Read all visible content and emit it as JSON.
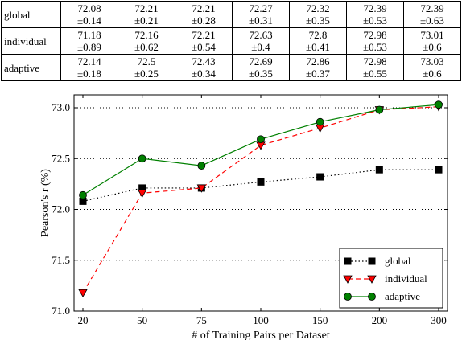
{
  "results_table": {
    "rows": [
      {
        "label": "global",
        "cells": [
          {
            "mean": "72.08",
            "std": "±0.14"
          },
          {
            "mean": "72.21",
            "std": "±0.21"
          },
          {
            "mean": "72.21",
            "std": "±0.28"
          },
          {
            "mean": "72.27",
            "std": "±0.31"
          },
          {
            "mean": "72.32",
            "std": "±0.35"
          },
          {
            "mean": "72.39",
            "std": "±0.53"
          },
          {
            "mean": "72.39",
            "std": "±0.63"
          }
        ]
      },
      {
        "label": "individual",
        "cells": [
          {
            "mean": "71.18",
            "std": "±0.89"
          },
          {
            "mean": "72.16",
            "std": "±0.62"
          },
          {
            "mean": "72.21",
            "std": "±0.54"
          },
          {
            "mean": "72.63",
            "std": "±0.4"
          },
          {
            "mean": "72.8",
            "std": "±0.41"
          },
          {
            "mean": "72.98",
            "std": "±0.53"
          },
          {
            "mean": "73.01",
            "std": "±0.6"
          }
        ]
      },
      {
        "label": "adaptive",
        "cells": [
          {
            "mean": "72.14",
            "std": "±0.18"
          },
          {
            "mean": "72.5",
            "std": "±0.25"
          },
          {
            "mean": "72.43",
            "std": "±0.34"
          },
          {
            "mean": "72.69",
            "std": "±0.35"
          },
          {
            "mean": "72.86",
            "std": "±0.37"
          },
          {
            "mean": "72.98",
            "std": "±0.55"
          },
          {
            "mean": "73.03",
            "std": "±0.6"
          }
        ]
      }
    ]
  },
  "chart_data": {
    "type": "line",
    "xlabel": "# of Training Pairs per Dataset",
    "ylabel": "Pearson's r (%)",
    "categories": [
      "20",
      "50",
      "75",
      "100",
      "150",
      "200",
      "300"
    ],
    "ylim": [
      71.0,
      73.0
    ],
    "yticks": [
      "71.0",
      "71.5",
      "72.0",
      "72.5",
      "73.0"
    ],
    "grid": "horizontal dotted",
    "legend_position": "bottom-right",
    "series": [
      {
        "name": "global",
        "values": [
          72.08,
          72.21,
          72.21,
          72.27,
          72.32,
          72.39,
          72.39
        ],
        "color": "#000000",
        "marker": "square",
        "line": "dotted"
      },
      {
        "name": "individual",
        "values": [
          71.18,
          72.16,
          72.21,
          72.63,
          72.8,
          72.98,
          73.01
        ],
        "color": "#ff0000",
        "marker": "triangle-down",
        "line": "dashed"
      },
      {
        "name": "adaptive",
        "values": [
          72.14,
          72.5,
          72.43,
          72.69,
          72.86,
          72.98,
          73.03
        ],
        "color": "#008000",
        "marker": "circle",
        "line": "solid"
      }
    ]
  }
}
